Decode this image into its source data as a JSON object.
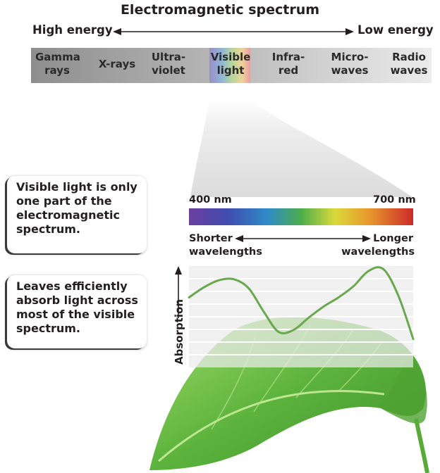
{
  "title": "Electromagnetic spectrum",
  "energy": {
    "high": "High energy",
    "low": "Low energy"
  },
  "bands": [
    {
      "line1": "Gamma",
      "line2": "rays"
    },
    {
      "line1": "X-rays",
      "line2": ""
    },
    {
      "line1": "Ultra-",
      "line2": "violet"
    },
    {
      "line1": "Visible",
      "line2": "light"
    },
    {
      "line1": "Infra-",
      "line2": "red"
    },
    {
      "line1": "Micro-",
      "line2": "waves"
    },
    {
      "line1": "Radio",
      "line2": "waves"
    }
  ],
  "visible": {
    "min_label": "400 nm",
    "max_label": "700 nm",
    "shorter_line1": "Shorter",
    "shorter_line2": "wavelengths",
    "longer_line1": "Longer",
    "longer_line2": "wavelengths"
  },
  "callouts": {
    "first": "Visible light is only one part of the electromagnetic spectrum.",
    "second": "Leaves efficiently absorb light across most of the visible spectrum."
  },
  "chart_data": {
    "type": "line",
    "ylabel": "Absorption",
    "x_units": "nm",
    "x": [
      400,
      420,
      440,
      460,
      480,
      500,
      520,
      540,
      560,
      580,
      600,
      620,
      640,
      660,
      680,
      700
    ],
    "series": [
      {
        "values": [
          0.69,
          0.79,
          0.86,
          0.87,
          0.78,
          0.55,
          0.35,
          0.37,
          0.49,
          0.6,
          0.69,
          0.8,
          0.95,
          0.97,
          0.71,
          0.28
        ]
      }
    ],
    "ylim": [
      0,
      1
    ],
    "grid": true
  },
  "colors": {
    "spectrum_gray": "#8c8c8c",
    "curve": "#69a84f",
    "leaf": "#5cb33c",
    "outline": "#3a3a3a"
  }
}
